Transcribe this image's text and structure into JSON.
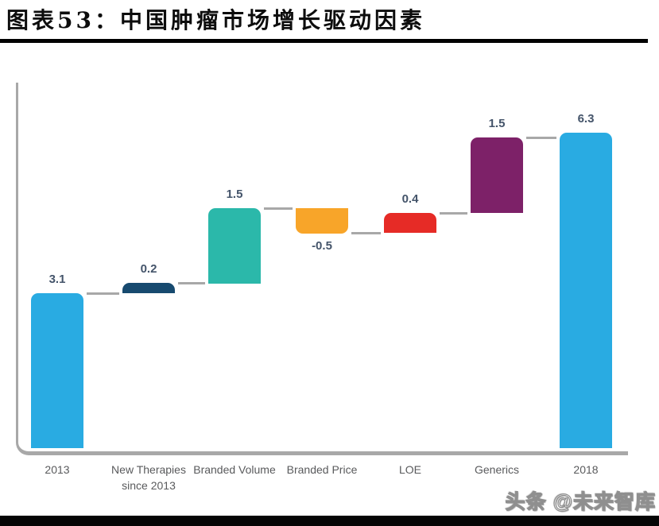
{
  "page": {
    "title": "图表53：中国肿瘤市场增长驱动因素",
    "watermark": "头条 @未来智库"
  },
  "chart_data": {
    "type": "bar",
    "subtype": "waterfall",
    "title": "图表53：中国肿瘤市场增长驱动因素",
    "categories": [
      "2013",
      "New Therapies since 2013",
      "Branded Volume",
      "Branded Price",
      "LOE",
      "Generics",
      "2018"
    ],
    "values": [
      3.1,
      0.2,
      1.5,
      -0.5,
      0.4,
      1.5,
      6.3
    ],
    "unit": "cumulative market size (waterfall, implied USD bn scale)",
    "ylim": [
      0,
      7
    ],
    "grid": false,
    "legend": "none",
    "axis_color": "#a8a8a8",
    "value_label_color": "#44546a",
    "category_label_color": "#595a5c",
    "bars": [
      {
        "category_lines": [
          "2013"
        ],
        "value": 3.1,
        "label": "3.1",
        "kind": "total",
        "color": "#29abe2"
      },
      {
        "category_lines": [
          "New Therapies",
          "since 2013"
        ],
        "value": 0.2,
        "label": "0.2",
        "kind": "increase",
        "color": "#174a6f"
      },
      {
        "category_lines": [
          "Branded Volume"
        ],
        "value": 1.5,
        "label": "1.5",
        "kind": "increase",
        "color": "#2bb8aa"
      },
      {
        "category_lines": [
          "Branded Price"
        ],
        "value": -0.5,
        "label": "-0.5",
        "kind": "decrease",
        "color": "#f8a529"
      },
      {
        "category_lines": [
          "LOE"
        ],
        "value": 0.4,
        "label": "0.4",
        "kind": "increase",
        "color": "#e62b26"
      },
      {
        "category_lines": [
          "Generics"
        ],
        "value": 1.5,
        "label": "1.5",
        "kind": "increase",
        "color": "#7d2168"
      },
      {
        "category_lines": [
          "2018"
        ],
        "value": 6.3,
        "label": "6.3",
        "kind": "total",
        "color": "#29abe2"
      }
    ]
  }
}
